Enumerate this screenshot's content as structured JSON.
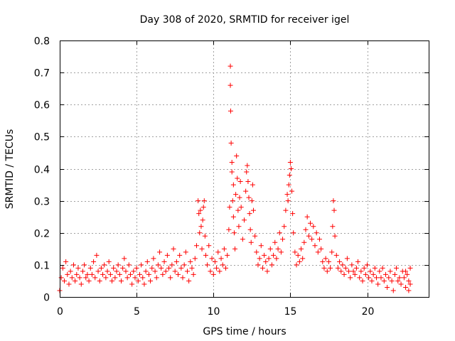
{
  "chart_data": {
    "type": "scatter",
    "title": "Day 308 of 2020, SRMTID for receiver igel",
    "xlabel": "GPS time / hours",
    "ylabel": "SRMTID / TECUs",
    "xlim": [
      0,
      24
    ],
    "ylim": [
      0,
      0.8
    ],
    "xticks": [
      0,
      5,
      10,
      15,
      20
    ],
    "xtick_labels": [
      "0",
      "5",
      "10",
      "15",
      "20"
    ],
    "yticks": [
      0,
      0.1,
      0.2,
      0.3,
      0.4,
      0.5,
      0.6,
      0.7,
      0.8
    ],
    "ytick_labels": [
      "0",
      "0.1",
      "0.2",
      "0.3",
      "0.4",
      "0.5",
      "0.6",
      "0.7",
      "0.8"
    ],
    "grid": true,
    "marker": "+",
    "color": "#ff0000",
    "series": [
      {
        "name": "SRMTID",
        "points": [
          [
            0.0,
            0.02
          ],
          [
            0.1,
            0.06
          ],
          [
            0.2,
            0.09
          ],
          [
            0.3,
            0.05
          ],
          [
            0.4,
            0.11
          ],
          [
            0.5,
            0.07
          ],
          [
            0.6,
            0.04
          ],
          [
            0.7,
            0.08
          ],
          [
            0.8,
            0.06
          ],
          [
            0.9,
            0.1
          ],
          [
            1.0,
            0.05
          ],
          [
            1.1,
            0.07
          ],
          [
            1.2,
            0.09
          ],
          [
            1.3,
            0.06
          ],
          [
            1.4,
            0.04
          ],
          [
            1.5,
            0.08
          ],
          [
            1.6,
            0.1
          ],
          [
            1.7,
            0.06
          ],
          [
            1.8,
            0.07
          ],
          [
            1.9,
            0.05
          ],
          [
            2.0,
            0.09
          ],
          [
            2.1,
            0.07
          ],
          [
            2.2,
            0.11
          ],
          [
            2.3,
            0.06
          ],
          [
            2.4,
            0.13
          ],
          [
            2.5,
            0.08
          ],
          [
            2.6,
            0.05
          ],
          [
            2.7,
            0.09
          ],
          [
            2.8,
            0.07
          ],
          [
            2.9,
            0.1
          ],
          [
            3.0,
            0.06
          ],
          [
            3.1,
            0.08
          ],
          [
            3.2,
            0.11
          ],
          [
            3.3,
            0.07
          ],
          [
            3.4,
            0.05
          ],
          [
            3.5,
            0.09
          ],
          [
            3.6,
            0.06
          ],
          [
            3.7,
            0.08
          ],
          [
            3.8,
            0.1
          ],
          [
            3.9,
            0.07
          ],
          [
            4.0,
            0.05
          ],
          [
            4.1,
            0.09
          ],
          [
            4.2,
            0.12
          ],
          [
            4.3,
            0.08
          ],
          [
            4.4,
            0.06
          ],
          [
            4.5,
            0.1
          ],
          [
            4.6,
            0.07
          ],
          [
            4.7,
            0.04
          ],
          [
            4.8,
            0.08
          ],
          [
            4.9,
            0.06
          ],
          [
            5.0,
            0.09
          ],
          [
            5.1,
            0.05
          ],
          [
            5.2,
            0.07
          ],
          [
            5.3,
            0.1
          ],
          [
            5.4,
            0.06
          ],
          [
            5.5,
            0.04
          ],
          [
            5.6,
            0.08
          ],
          [
            5.7,
            0.11
          ],
          [
            5.8,
            0.07
          ],
          [
            5.9,
            0.05
          ],
          [
            6.0,
            0.09
          ],
          [
            6.1,
            0.12
          ],
          [
            6.2,
            0.08
          ],
          [
            6.3,
            0.06
          ],
          [
            6.4,
            0.1
          ],
          [
            6.5,
            0.14
          ],
          [
            6.6,
            0.09
          ],
          [
            6.7,
            0.07
          ],
          [
            6.8,
            0.11
          ],
          [
            6.9,
            0.08
          ],
          [
            7.0,
            0.13
          ],
          [
            7.1,
            0.09
          ],
          [
            7.2,
            0.06
          ],
          [
            7.3,
            0.1
          ],
          [
            7.4,
            0.15
          ],
          [
            7.5,
            0.08
          ],
          [
            7.6,
            0.11
          ],
          [
            7.7,
            0.07
          ],
          [
            7.8,
            0.13
          ],
          [
            7.9,
            0.09
          ],
          [
            8.0,
            0.06
          ],
          [
            8.1,
            0.1
          ],
          [
            8.2,
            0.14
          ],
          [
            8.3,
            0.08
          ],
          [
            8.4,
            0.05
          ],
          [
            8.5,
            0.11
          ],
          [
            8.6,
            0.09
          ],
          [
            8.7,
            0.07
          ],
          [
            8.8,
            0.12
          ],
          [
            8.9,
            0.16
          ],
          [
            9.0,
            0.3
          ],
          [
            9.05,
            0.26
          ],
          [
            9.1,
            0.2
          ],
          [
            9.15,
            0.27
          ],
          [
            9.2,
            0.22
          ],
          [
            9.25,
            0.15
          ],
          [
            9.3,
            0.24
          ],
          [
            9.35,
            0.28
          ],
          [
            9.4,
            0.3
          ],
          [
            9.45,
            0.19
          ],
          [
            9.5,
            0.13
          ],
          [
            9.6,
            0.1
          ],
          [
            9.7,
            0.16
          ],
          [
            9.8,
            0.08
          ],
          [
            9.9,
            0.12
          ],
          [
            10.0,
            0.07
          ],
          [
            10.1,
            0.11
          ],
          [
            10.2,
            0.09
          ],
          [
            10.3,
            0.14
          ],
          [
            10.4,
            0.08
          ],
          [
            10.5,
            0.12
          ],
          [
            10.6,
            0.1
          ],
          [
            10.7,
            0.15
          ],
          [
            10.8,
            0.09
          ],
          [
            10.9,
            0.13
          ],
          [
            11.0,
            0.21
          ],
          [
            11.05,
            0.28
          ],
          [
            11.1,
            0.72
          ],
          [
            11.1,
            0.66
          ],
          [
            11.12,
            0.58
          ],
          [
            11.15,
            0.48
          ],
          [
            11.2,
            0.42
          ],
          [
            11.2,
            0.39
          ],
          [
            11.25,
            0.3
          ],
          [
            11.3,
            0.35
          ],
          [
            11.3,
            0.25
          ],
          [
            11.35,
            0.2
          ],
          [
            11.4,
            0.15
          ],
          [
            11.45,
            0.32
          ],
          [
            11.5,
            0.44
          ],
          [
            11.55,
            0.37
          ],
          [
            11.6,
            0.27
          ],
          [
            11.65,
            0.22
          ],
          [
            11.7,
            0.31
          ],
          [
            11.75,
            0.36
          ],
          [
            11.8,
            0.28
          ],
          [
            11.9,
            0.18
          ],
          [
            12.0,
            0.24
          ],
          [
            12.1,
            0.33
          ],
          [
            12.15,
            0.39
          ],
          [
            12.2,
            0.41
          ],
          [
            12.25,
            0.36
          ],
          [
            12.3,
            0.31
          ],
          [
            12.35,
            0.26
          ],
          [
            12.4,
            0.21
          ],
          [
            12.45,
            0.17
          ],
          [
            12.5,
            0.3
          ],
          [
            12.55,
            0.35
          ],
          [
            12.6,
            0.27
          ],
          [
            12.7,
            0.19
          ],
          [
            12.8,
            0.14
          ],
          [
            12.9,
            0.1
          ],
          [
            13.0,
            0.12
          ],
          [
            13.1,
            0.16
          ],
          [
            13.2,
            0.09
          ],
          [
            13.3,
            0.13
          ],
          [
            13.4,
            0.11
          ],
          [
            13.5,
            0.08
          ],
          [
            13.6,
            0.12
          ],
          [
            13.7,
            0.15
          ],
          [
            13.8,
            0.1
          ],
          [
            13.9,
            0.13
          ],
          [
            14.0,
            0.17
          ],
          [
            14.1,
            0.12
          ],
          [
            14.2,
            0.15
          ],
          [
            14.3,
            0.2
          ],
          [
            14.4,
            0.14
          ],
          [
            14.5,
            0.18
          ],
          [
            14.6,
            0.22
          ],
          [
            14.7,
            0.27
          ],
          [
            14.8,
            0.32
          ],
          [
            14.85,
            0.3
          ],
          [
            14.9,
            0.35
          ],
          [
            14.95,
            0.38
          ],
          [
            15.0,
            0.42
          ],
          [
            15.05,
            0.4
          ],
          [
            15.1,
            0.33
          ],
          [
            15.15,
            0.26
          ],
          [
            15.2,
            0.2
          ],
          [
            15.3,
            0.14
          ],
          [
            15.4,
            0.1
          ],
          [
            15.5,
            0.13
          ],
          [
            15.6,
            0.11
          ],
          [
            15.7,
            0.15
          ],
          [
            15.8,
            0.12
          ],
          [
            15.9,
            0.17
          ],
          [
            16.0,
            0.21
          ],
          [
            16.1,
            0.25
          ],
          [
            16.2,
            0.19
          ],
          [
            16.3,
            0.23
          ],
          [
            16.4,
            0.18
          ],
          [
            16.5,
            0.22
          ],
          [
            16.6,
            0.16
          ],
          [
            16.7,
            0.2
          ],
          [
            16.8,
            0.14
          ],
          [
            16.9,
            0.18
          ],
          [
            17.0,
            0.15
          ],
          [
            17.1,
            0.11
          ],
          [
            17.2,
            0.09
          ],
          [
            17.3,
            0.12
          ],
          [
            17.4,
            0.08
          ],
          [
            17.5,
            0.11
          ],
          [
            17.6,
            0.09
          ],
          [
            17.7,
            0.14
          ],
          [
            17.75,
            0.22
          ],
          [
            17.8,
            0.3
          ],
          [
            17.85,
            0.27
          ],
          [
            17.9,
            0.19
          ],
          [
            18.0,
            0.13
          ],
          [
            18.1,
            0.09
          ],
          [
            18.2,
            0.11
          ],
          [
            18.3,
            0.08
          ],
          [
            18.4,
            0.1
          ],
          [
            18.5,
            0.07
          ],
          [
            18.6,
            0.09
          ],
          [
            18.7,
            0.12
          ],
          [
            18.8,
            0.08
          ],
          [
            18.9,
            0.06
          ],
          [
            19.0,
            0.1
          ],
          [
            19.1,
            0.08
          ],
          [
            19.2,
            0.07
          ],
          [
            19.3,
            0.09
          ],
          [
            19.4,
            0.11
          ],
          [
            19.5,
            0.06
          ],
          [
            19.6,
            0.08
          ],
          [
            19.7,
            0.05
          ],
          [
            19.8,
            0.09
          ],
          [
            19.9,
            0.07
          ],
          [
            20.0,
            0.1
          ],
          [
            20.1,
            0.06
          ],
          [
            20.2,
            0.08
          ],
          [
            20.3,
            0.05
          ],
          [
            20.4,
            0.07
          ],
          [
            20.5,
            0.09
          ],
          [
            20.6,
            0.06
          ],
          [
            20.7,
            0.04
          ],
          [
            20.8,
            0.08
          ],
          [
            20.9,
            0.06
          ],
          [
            21.0,
            0.09
          ],
          [
            21.1,
            0.05
          ],
          [
            21.2,
            0.07
          ],
          [
            21.3,
            0.03
          ],
          [
            21.4,
            0.06
          ],
          [
            21.5,
            0.08
          ],
          [
            21.6,
            0.05
          ],
          [
            21.7,
            0.02
          ],
          [
            21.8,
            0.07
          ],
          [
            21.9,
            0.09
          ],
          [
            22.0,
            0.05
          ],
          [
            22.1,
            0.06
          ],
          [
            22.2,
            0.04
          ],
          [
            22.3,
            0.08
          ],
          [
            22.4,
            0.06
          ],
          [
            22.5,
            0.03
          ],
          [
            22.6,
            0.07
          ],
          [
            22.7,
            0.05
          ],
          [
            22.8,
            0.09
          ],
          [
            22.8,
            0.04
          ],
          [
            22.7,
            0.02
          ],
          [
            22.5,
            0.08
          ]
        ]
      }
    ]
  }
}
